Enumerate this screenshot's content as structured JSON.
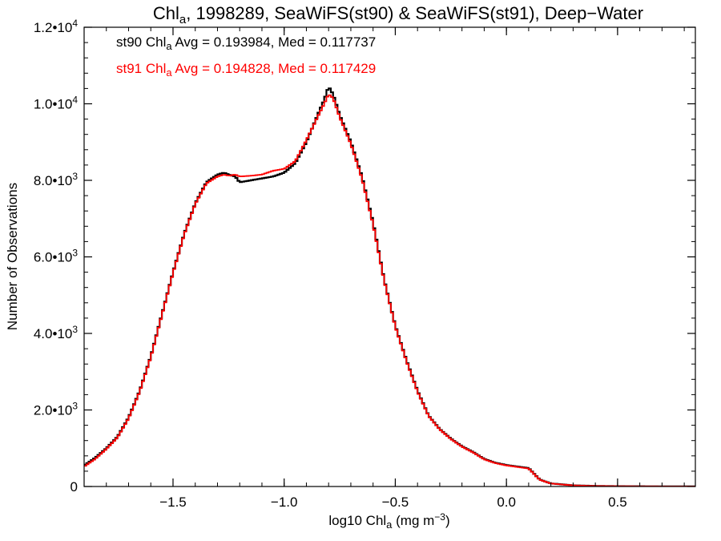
{
  "chart_data": {
    "type": "line",
    "title": {
      "pre": "Chl",
      "sub": "a",
      "post": ", 1998289, SeaWiFS(st90) & SeaWiFS(st91), Deep−Water"
    },
    "xlabel": {
      "pre": "log10 Chl",
      "sub": "a",
      "post": " (mg m",
      "sup": "−3",
      "end": ")"
    },
    "ylabel": "Number of Observations",
    "xlim": [
      -1.9,
      0.85
    ],
    "ylim": [
      0,
      12000
    ],
    "x_ticks": [
      {
        "value": -1.5,
        "label": "−1.5"
      },
      {
        "value": -1.0,
        "label": "−1.0"
      },
      {
        "value": -0.5,
        "label": "−0.5"
      },
      {
        "value": 0.0,
        "label": "0.0"
      },
      {
        "value": 0.5,
        "label": "0.5"
      }
    ],
    "x_minor_step": 0.1,
    "y_ticks": [
      {
        "value": 0,
        "mant": "0",
        "exp": ""
      },
      {
        "value": 2000,
        "mant": "2.0•10",
        "exp": "3"
      },
      {
        "value": 4000,
        "mant": "4.0•10",
        "exp": "3"
      },
      {
        "value": 6000,
        "mant": "6.0•10",
        "exp": "3"
      },
      {
        "value": 8000,
        "mant": "8.0•10",
        "exp": "3"
      },
      {
        "value": 10000,
        "mant": "1.0•10",
        "exp": "4"
      },
      {
        "value": 12000,
        "mant": "1.2•10",
        "exp": "4"
      }
    ],
    "y_minor_step": 400,
    "annotations": [
      {
        "pre": "st90 Chl",
        "sub": "a",
        "post": " Avg = 0.193984, Med = 0.117737",
        "color": "#000000"
      },
      {
        "pre": "st91 Chl",
        "sub": "a",
        "post": " Avg = 0.194828, Med = 0.117429",
        "color": "#ff0000"
      }
    ],
    "series": [
      {
        "color": "#000000",
        "x": [
          -1.9,
          -1.85,
          -1.8,
          -1.75,
          -1.7,
          -1.65,
          -1.6,
          -1.55,
          -1.5,
          -1.45,
          -1.4,
          -1.35,
          -1.3,
          -1.27,
          -1.25,
          -1.22,
          -1.2,
          -1.15,
          -1.1,
          -1.05,
          -1.0,
          -0.95,
          -0.9,
          -0.85,
          -0.82,
          -0.8,
          -0.78,
          -0.75,
          -0.7,
          -0.65,
          -0.6,
          -0.55,
          -0.5,
          -0.45,
          -0.4,
          -0.35,
          -0.3,
          -0.25,
          -0.2,
          -0.15,
          -0.1,
          -0.05,
          0.0,
          0.05,
          0.1,
          0.15,
          0.2,
          0.3,
          0.4,
          0.5,
          0.6,
          0.7,
          0.85
        ],
        "y": [
          550,
          750,
          1000,
          1300,
          1800,
          2500,
          3400,
          4500,
          5600,
          6600,
          7400,
          7950,
          8150,
          8200,
          8150,
          8100,
          7950,
          8000,
          8050,
          8100,
          8200,
          8450,
          9000,
          9700,
          10100,
          10450,
          10250,
          9700,
          9000,
          8100,
          6900,
          5400,
          4200,
          3300,
          2500,
          1850,
          1500,
          1250,
          1050,
          900,
          720,
          620,
          560,
          520,
          480,
          180,
          80,
          30,
          15,
          8,
          5,
          3,
          2
        ]
      },
      {
        "color": "#ff0000",
        "x": [
          -1.9,
          -1.85,
          -1.8,
          -1.75,
          -1.7,
          -1.65,
          -1.6,
          -1.55,
          -1.5,
          -1.45,
          -1.4,
          -1.35,
          -1.3,
          -1.27,
          -1.25,
          -1.22,
          -1.2,
          -1.15,
          -1.1,
          -1.05,
          -1.0,
          -0.95,
          -0.9,
          -0.85,
          -0.82,
          -0.8,
          -0.78,
          -0.75,
          -0.7,
          -0.65,
          -0.6,
          -0.55,
          -0.5,
          -0.45,
          -0.4,
          -0.35,
          -0.3,
          -0.25,
          -0.2,
          -0.15,
          -0.1,
          -0.05,
          0.0,
          0.05,
          0.1,
          0.15,
          0.2,
          0.3,
          0.4,
          0.5,
          0.6,
          0.7,
          0.85
        ],
        "y": [
          520,
          720,
          980,
          1280,
          1780,
          2480,
          3380,
          4480,
          5580,
          6580,
          7380,
          7920,
          8100,
          8150,
          8120,
          8150,
          8100,
          8120,
          8150,
          8250,
          8300,
          8500,
          9050,
          9650,
          10000,
          10250,
          10150,
          9650,
          8950,
          8050,
          6850,
          5380,
          4180,
          3280,
          2480,
          1840,
          1490,
          1240,
          1040,
          890,
          710,
          610,
          550,
          510,
          470,
          175,
          78,
          28,
          14,
          8,
          5,
          3,
          2
        ]
      }
    ]
  }
}
